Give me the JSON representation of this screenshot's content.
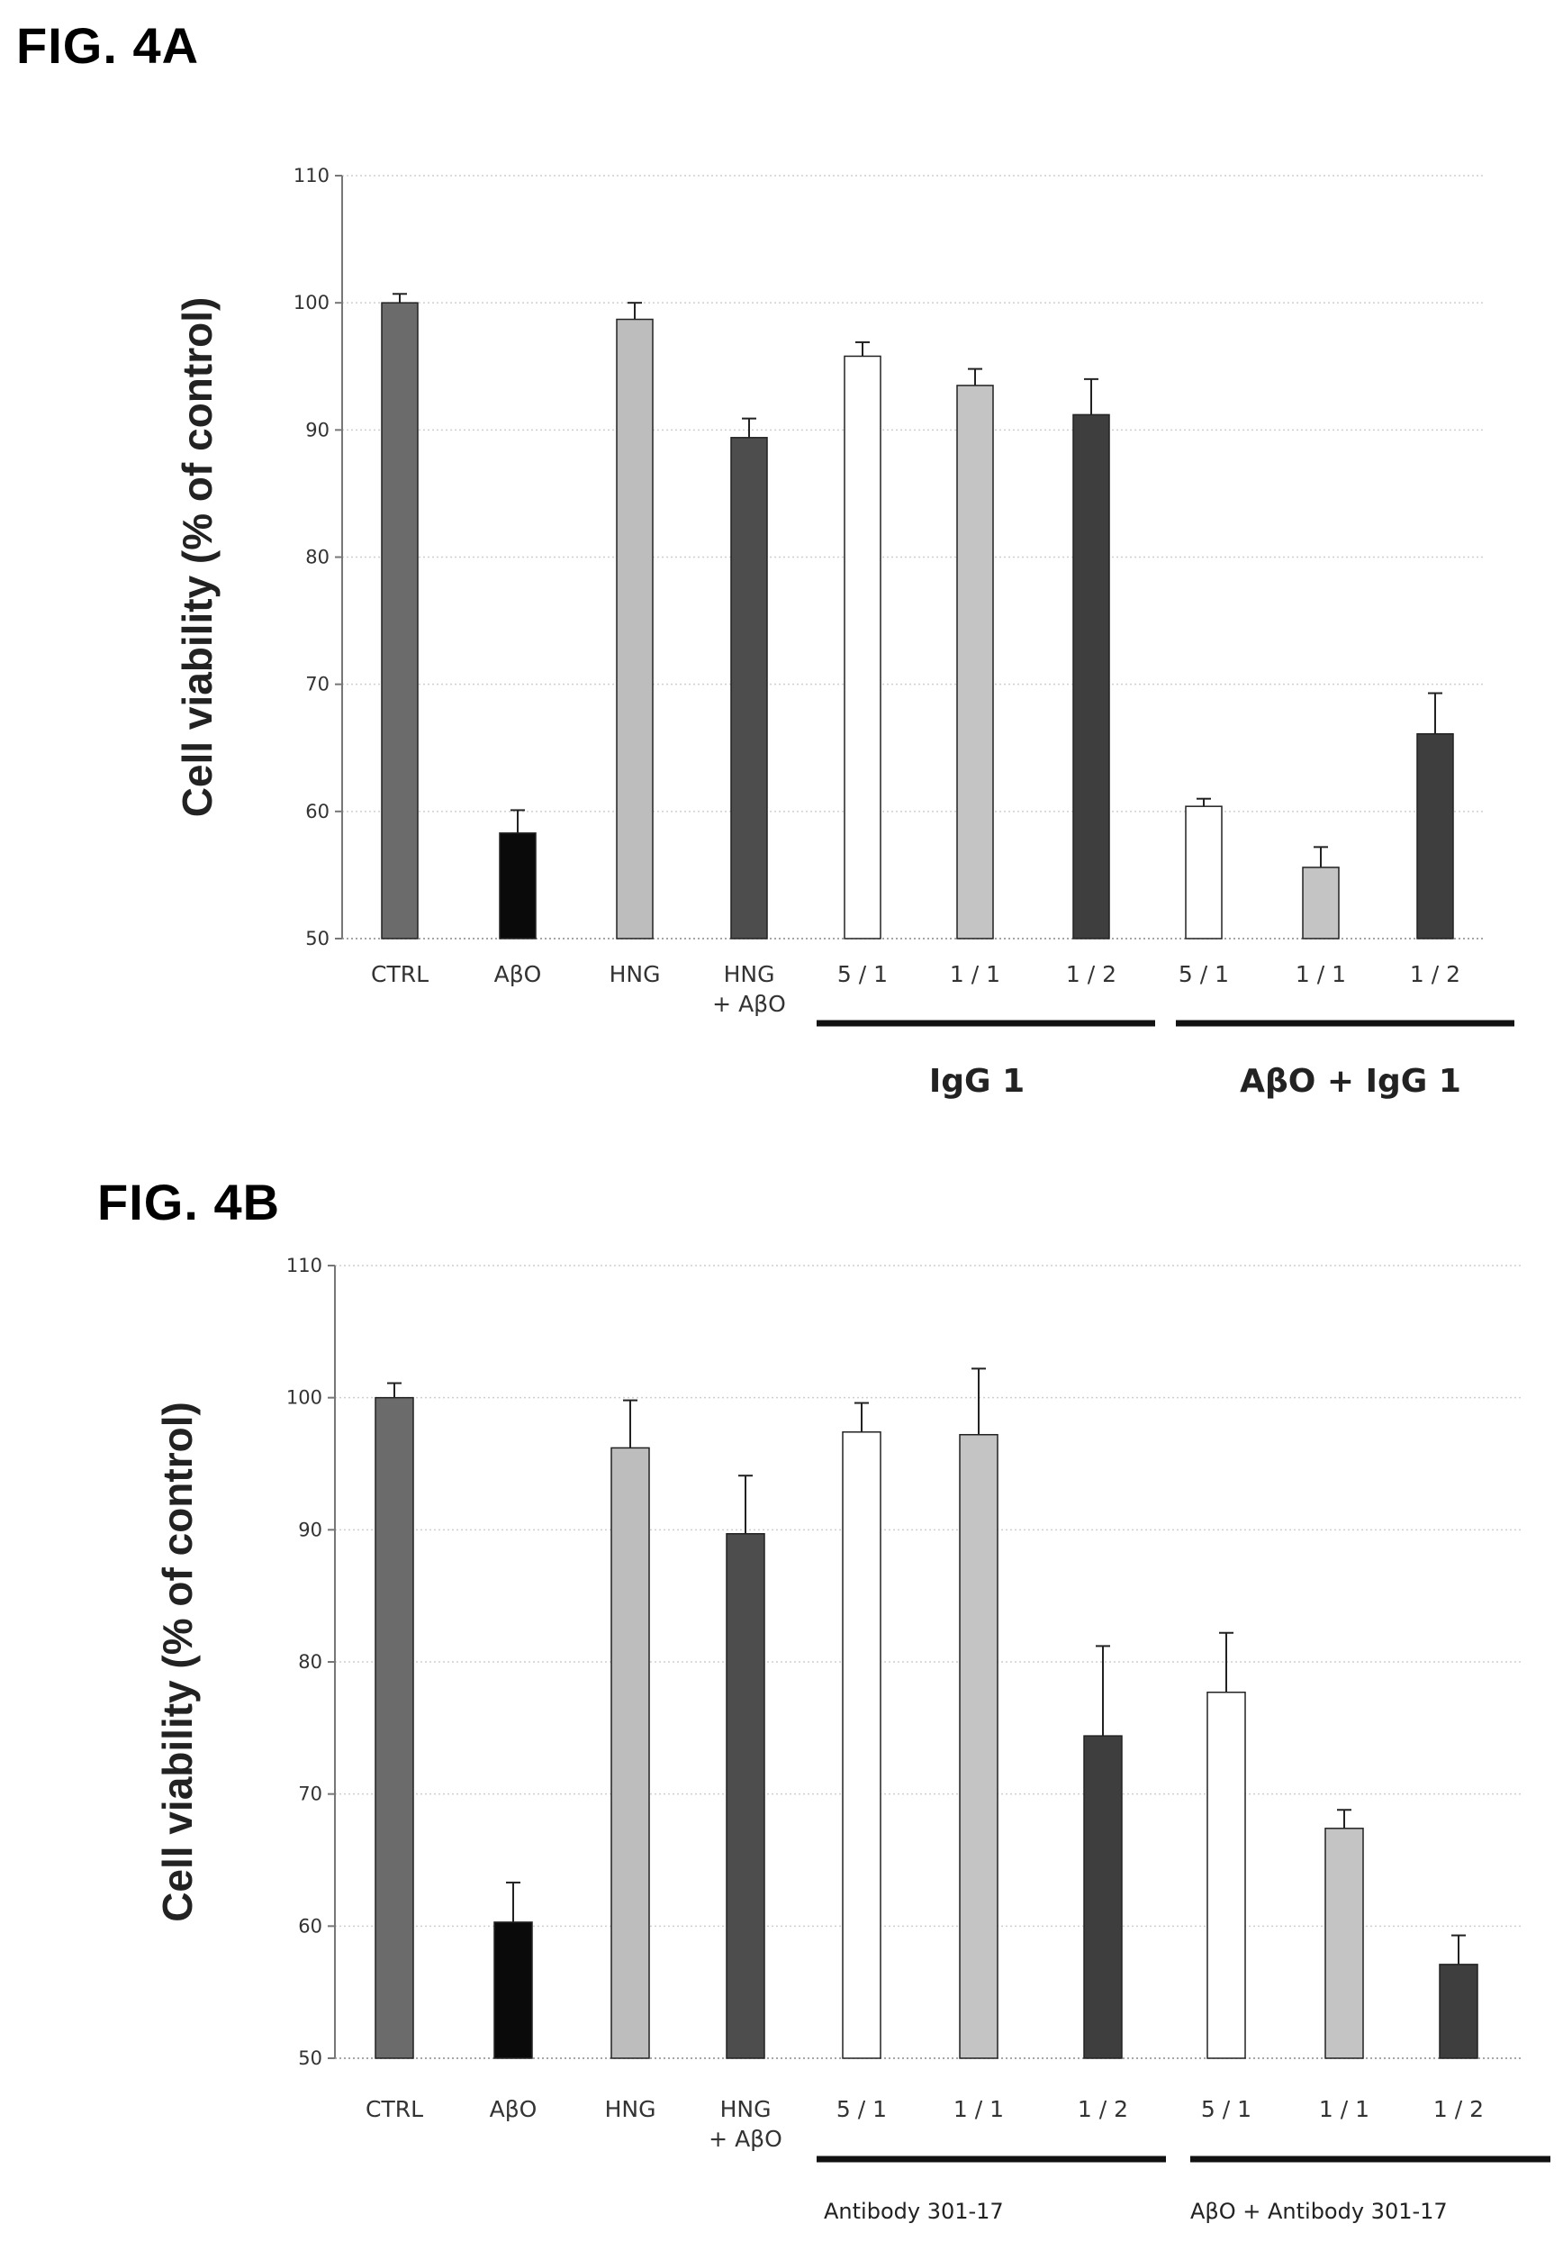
{
  "figures": {
    "a_title": "FIG. 4A",
    "b_title": "FIG. 4B"
  },
  "colors": {
    "CTRL": "#6b6b6b",
    "AβO": "#0a0a0a",
    "HNG": "#bdbdbd",
    "HNG + AβO": "#4d4d4d",
    "5 / 1": "#ffffff",
    "1 / 1": "#c4c4c4",
    "1 / 2": "#3e3e3e"
  },
  "chart_data": [
    {
      "type": "bar",
      "ylabel": "Cell viability (% of control)",
      "ylim": [
        50,
        110
      ],
      "yticks": [
        50,
        60,
        70,
        80,
        90,
        100,
        110
      ],
      "grid": true,
      "categories": [
        "CTRL",
        "AβO",
        "HNG",
        "HNG + AβO",
        "5 / 1",
        "1 / 1",
        "1 / 2",
        "5 / 1",
        "1 / 1",
        "1 / 2"
      ],
      "values": [
        100.0,
        58.3,
        98.7,
        89.4,
        95.8,
        93.5,
        91.2,
        60.4,
        55.6,
        66.1
      ],
      "errors": [
        0.7,
        1.8,
        1.3,
        1.5,
        1.1,
        1.3,
        2.8,
        0.6,
        1.6,
        3.2
      ],
      "groups": [
        {
          "label": "IgG 1",
          "members": [
            4,
            5,
            6
          ]
        },
        {
          "label": "AβO + IgG 1",
          "members": [
            7,
            8,
            9
          ]
        }
      ]
    },
    {
      "type": "bar",
      "ylabel": "Cell viability (% of control)",
      "ylim": [
        50,
        110
      ],
      "yticks": [
        50,
        60,
        70,
        80,
        90,
        100,
        110
      ],
      "grid": true,
      "categories": [
        "CTRL",
        "AβO",
        "HNG",
        "HNG + AβO",
        "5 / 1",
        "1 / 1",
        "1 / 2",
        "5 / 1",
        "1 / 1",
        "1 / 2"
      ],
      "values": [
        100.0,
        60.3,
        96.2,
        89.7,
        97.4,
        97.2,
        74.4,
        77.7,
        67.4,
        57.1
      ],
      "errors": [
        1.1,
        3.0,
        3.6,
        4.4,
        2.2,
        5.0,
        6.8,
        4.5,
        1.4,
        2.2
      ],
      "groups": [
        {
          "label": "Antibody 301-17",
          "members": [
            4,
            5,
            6
          ]
        },
        {
          "label": "AβO + Antibody 301-17",
          "members": [
            7,
            8,
            9
          ]
        }
      ]
    }
  ]
}
